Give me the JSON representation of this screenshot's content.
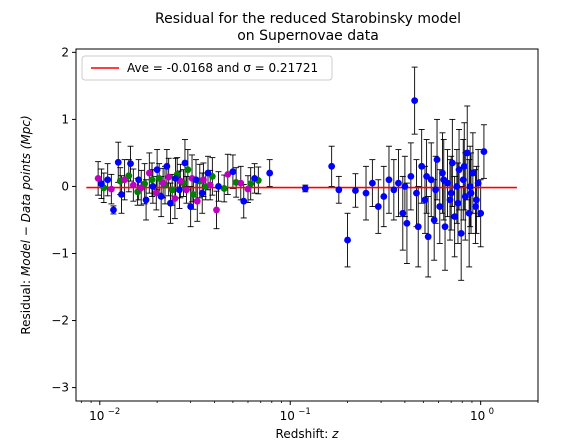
{
  "chart_data": {
    "type": "scatter",
    "title_line1": "Residual for the reduced Starobinsky model",
    "title_line2": "on Supernovae data",
    "xlabel_prefix": "Redshift: ",
    "xlabel_var": "z",
    "ylabel_prefix": "Residual: ",
    "ylabel_italic": "Model − Data points (Mpc)",
    "x_scale": "log",
    "xlim": [
      0.0075,
      2.0
    ],
    "ylim": [
      -3.2,
      2.05
    ],
    "x_ticks": [
      0.01,
      0.1,
      1
    ],
    "x_tick_labels": [
      "10",
      "10",
      "10"
    ],
    "x_tick_exponents": [
      "−2",
      "−1",
      "0"
    ],
    "y_ticks": [
      -3,
      -2,
      -1,
      0,
      1,
      2
    ],
    "y_tick_labels": [
      "−3",
      "−2",
      "−1",
      "0",
      "1",
      "2"
    ],
    "grid": false,
    "legend_position": "top-left",
    "legend_label": "Ave = -0.0168 and σ = 0.21721",
    "average_line": {
      "name": "Ave = -0.0168 and σ = 0.21721",
      "y": -0.0168,
      "x_range": [
        0.0085,
        1.55
      ],
      "color": "#ff0000"
    },
    "colors": {
      "green": "#008000",
      "magenta": "#bf00bf",
      "blue": "#0000ff",
      "error_bar": "#000000"
    },
    "series": [
      {
        "name": "",
        "color": "#008000",
        "points": [
          {
            "x": 0.0105,
            "y": -0.02,
            "err": 0.22
          },
          {
            "x": 0.0128,
            "y": 0.08,
            "err": 0.2
          },
          {
            "x": 0.0142,
            "y": 0.16,
            "err": 0.24
          },
          {
            "x": 0.0158,
            "y": -0.08,
            "err": 0.2
          },
          {
            "x": 0.0172,
            "y": 0.04,
            "err": 0.3
          },
          {
            "x": 0.0188,
            "y": 0.1,
            "err": 0.25
          },
          {
            "x": 0.0205,
            "y": 0.12,
            "err": 0.22
          },
          {
            "x": 0.022,
            "y": 0.02,
            "err": 0.28
          },
          {
            "x": 0.024,
            "y": -0.05,
            "err": 0.23
          },
          {
            "x": 0.0255,
            "y": 0.18,
            "err": 0.25
          },
          {
            "x": 0.0275,
            "y": 0.05,
            "err": 0.2
          },
          {
            "x": 0.029,
            "y": 0.25,
            "err": 0.3
          },
          {
            "x": 0.031,
            "y": -0.12,
            "err": 0.22
          },
          {
            "x": 0.0335,
            "y": 0.08,
            "err": 0.25
          },
          {
            "x": 0.036,
            "y": 0.0,
            "err": 0.2
          },
          {
            "x": 0.039,
            "y": 0.15,
            "err": 0.28
          },
          {
            "x": 0.045,
            "y": -0.03,
            "err": 0.2
          },
          {
            "x": 0.052,
            "y": 0.06,
            "err": 0.22
          },
          {
            "x": 0.062,
            "y": 0.04,
            "err": 0.24
          },
          {
            "x": 0.068,
            "y": 0.09,
            "err": 0.2
          }
        ]
      },
      {
        "name": "",
        "color": "#bf00bf",
        "points": [
          {
            "x": 0.0098,
            "y": 0.12,
            "err": 0.25
          },
          {
            "x": 0.0115,
            "y": -0.04,
            "err": 0.22
          },
          {
            "x": 0.0135,
            "y": 0.1,
            "err": 0.3
          },
          {
            "x": 0.015,
            "y": 0.02,
            "err": 0.24
          },
          {
            "x": 0.0165,
            "y": -0.02,
            "err": 0.26
          },
          {
            "x": 0.0182,
            "y": 0.2,
            "err": 0.3
          },
          {
            "x": 0.0198,
            "y": -0.1,
            "err": 0.25
          },
          {
            "x": 0.0215,
            "y": 0.05,
            "err": 0.22
          },
          {
            "x": 0.023,
            "y": 0.14,
            "err": 0.28
          },
          {
            "x": 0.0248,
            "y": -0.18,
            "err": 0.3
          },
          {
            "x": 0.0265,
            "y": 0.08,
            "err": 0.25
          },
          {
            "x": 0.0285,
            "y": -0.05,
            "err": 0.2
          },
          {
            "x": 0.0305,
            "y": 0.12,
            "err": 0.35
          },
          {
            "x": 0.0325,
            "y": -0.22,
            "err": 0.3
          },
          {
            "x": 0.035,
            "y": 0.1,
            "err": 0.25
          },
          {
            "x": 0.038,
            "y": 0.02,
            "err": 0.22
          },
          {
            "x": 0.041,
            "y": -0.35,
            "err": 0.28
          },
          {
            "x": 0.047,
            "y": 0.18,
            "err": 0.3
          },
          {
            "x": 0.055,
            "y": 0.05,
            "err": 0.25
          },
          {
            "x": 0.06,
            "y": -0.04,
            "err": 0.2
          }
        ]
      },
      {
        "name": "",
        "color": "#0000ff",
        "points": [
          {
            "x": 0.0102,
            "y": 0.04,
            "err": 0.22
          },
          {
            "x": 0.011,
            "y": 0.1,
            "err": 0.24
          },
          {
            "x": 0.0118,
            "y": -0.35,
            "err": 0.06
          },
          {
            "x": 0.0125,
            "y": 0.36,
            "err": 0.3
          },
          {
            "x": 0.013,
            "y": -0.12,
            "err": 0.28
          },
          {
            "x": 0.0145,
            "y": 0.34,
            "err": 0.26
          },
          {
            "x": 0.016,
            "y": 0.1,
            "err": 0.3
          },
          {
            "x": 0.0175,
            "y": -0.2,
            "err": 0.3
          },
          {
            "x": 0.019,
            "y": 0.0,
            "err": 0.25
          },
          {
            "x": 0.02,
            "y": 0.25,
            "err": 0.3
          },
          {
            "x": 0.021,
            "y": -0.15,
            "err": 0.3
          },
          {
            "x": 0.0225,
            "y": 0.3,
            "err": 0.25
          },
          {
            "x": 0.0235,
            "y": -0.25,
            "err": 0.3
          },
          {
            "x": 0.025,
            "y": 0.12,
            "err": 0.3
          },
          {
            "x": 0.0262,
            "y": -0.05,
            "err": 0.28
          },
          {
            "x": 0.028,
            "y": 0.35,
            "err": 0.35
          },
          {
            "x": 0.03,
            "y": -0.3,
            "err": 0.3
          },
          {
            "x": 0.032,
            "y": 0.1,
            "err": 0.3
          },
          {
            "x": 0.0345,
            "y": -0.1,
            "err": 0.3
          },
          {
            "x": 0.037,
            "y": 0.2,
            "err": 0.25
          },
          {
            "x": 0.042,
            "y": 0.0,
            "err": 0.22
          },
          {
            "x": 0.05,
            "y": 0.22,
            "err": 0.25
          },
          {
            "x": 0.057,
            "y": -0.22,
            "err": 0.25
          },
          {
            "x": 0.065,
            "y": 0.12,
            "err": 0.22
          },
          {
            "x": 0.078,
            "y": 0.2,
            "err": 0.2
          },
          {
            "x": 0.12,
            "y": -0.03,
            "err": 0.05
          },
          {
            "x": 0.165,
            "y": 0.3,
            "err": 0.3
          },
          {
            "x": 0.18,
            "y": -0.05,
            "err": 0.2
          },
          {
            "x": 0.2,
            "y": -0.8,
            "err": 0.4
          },
          {
            "x": 0.22,
            "y": -0.06,
            "err": 0.25
          },
          {
            "x": 0.25,
            "y": -0.1,
            "err": 0.4
          },
          {
            "x": 0.27,
            "y": 0.05,
            "err": 0.35
          },
          {
            "x": 0.29,
            "y": -0.3,
            "err": 0.4
          },
          {
            "x": 0.31,
            "y": -0.15,
            "err": 0.45
          },
          {
            "x": 0.33,
            "y": 0.1,
            "err": 0.5
          },
          {
            "x": 0.35,
            "y": -0.05,
            "err": 0.45
          },
          {
            "x": 0.37,
            "y": 0.05,
            "err": 0.5
          },
          {
            "x": 0.39,
            "y": -0.4,
            "err": 0.55
          },
          {
            "x": 0.41,
            "y": -0.55,
            "err": 0.6
          },
          {
            "x": 0.43,
            "y": 0.15,
            "err": 0.5
          },
          {
            "x": 0.45,
            "y": 1.28,
            "err": 0.5
          },
          {
            "x": 0.47,
            "y": -0.6,
            "err": 0.6
          },
          {
            "x": 0.49,
            "y": 0.3,
            "err": 0.55
          },
          {
            "x": 0.51,
            "y": -0.2,
            "err": 0.5
          },
          {
            "x": 0.53,
            "y": -0.75,
            "err": 0.6
          },
          {
            "x": 0.55,
            "y": 0.1,
            "err": 0.55
          },
          {
            "x": 0.57,
            "y": -0.5,
            "err": 0.6
          },
          {
            "x": 0.59,
            "y": 0.4,
            "err": 0.6
          },
          {
            "x": 0.61,
            "y": -0.3,
            "err": 0.55
          },
          {
            "x": 0.63,
            "y": 0.2,
            "err": 0.6
          },
          {
            "x": 0.65,
            "y": -0.6,
            "err": 0.65
          },
          {
            "x": 0.67,
            "y": 0.05,
            "err": 0.5
          },
          {
            "x": 0.69,
            "y": -0.2,
            "err": 0.6
          },
          {
            "x": 0.71,
            "y": 0.35,
            "err": 0.65
          },
          {
            "x": 0.73,
            "y": -0.45,
            "err": 0.6
          },
          {
            "x": 0.75,
            "y": 0.0,
            "err": 0.55
          },
          {
            "x": 0.77,
            "y": 0.25,
            "err": 0.6
          },
          {
            "x": 0.79,
            "y": -0.7,
            "err": 0.7
          },
          {
            "x": 0.81,
            "y": 0.1,
            "err": 0.6
          },
          {
            "x": 0.83,
            "y": -0.15,
            "err": 0.65
          },
          {
            "x": 0.85,
            "y": 0.5,
            "err": 0.7
          },
          {
            "x": 0.87,
            "y": -0.4,
            "err": 0.8
          },
          {
            "x": 0.89,
            "y": -0.1,
            "err": 0.6
          },
          {
            "x": 0.91,
            "y": 0.2,
            "err": 0.6
          },
          {
            "x": 0.94,
            "y": -0.3,
            "err": 0.55
          },
          {
            "x": 0.97,
            "y": 0.05,
            "err": 0.5
          },
          {
            "x": 1.0,
            "y": -0.4,
            "err": 0.5
          },
          {
            "x": 1.04,
            "y": 0.52,
            "err": 0.4
          },
          {
            "x": 0.4,
            "y": 0.0,
            "err": 0.45
          },
          {
            "x": 0.46,
            "y": -0.1,
            "err": 0.5
          },
          {
            "x": 0.52,
            "y": 0.15,
            "err": 0.55
          },
          {
            "x": 0.58,
            "y": -0.05,
            "err": 0.5
          },
          {
            "x": 0.64,
            "y": 0.1,
            "err": 0.6
          },
          {
            "x": 0.7,
            "y": -0.1,
            "err": 0.55
          },
          {
            "x": 0.76,
            "y": -0.25,
            "err": 0.6
          },
          {
            "x": 0.82,
            "y": 0.3,
            "err": 0.65
          },
          {
            "x": 0.88,
            "y": 0.0,
            "err": 0.6
          },
          {
            "x": 0.95,
            "y": -0.2,
            "err": 0.5
          }
        ]
      }
    ]
  }
}
